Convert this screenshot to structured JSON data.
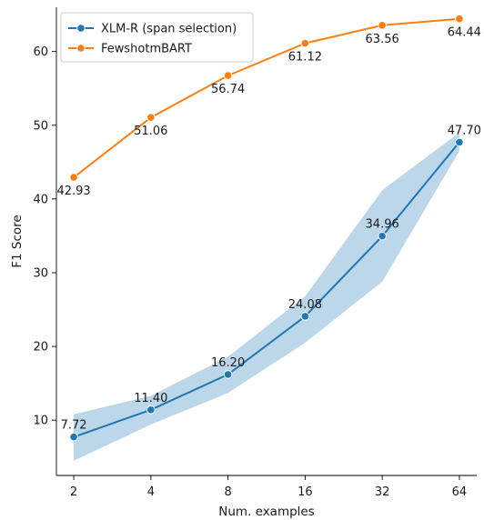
{
  "chart_data": {
    "type": "line",
    "x": [
      2,
      4,
      8,
      16,
      32,
      64
    ],
    "x_tick_labels": [
      "2",
      "4",
      "8",
      "16",
      "32",
      "64"
    ],
    "x_scale": "log2",
    "xlabel": "Num. examples",
    "ylabel": "F1 Score",
    "ylim": [
      2.5,
      66
    ],
    "y_ticks": [
      10,
      20,
      30,
      40,
      50,
      60
    ],
    "y_tick_labels": [
      "10",
      "20",
      "30",
      "40",
      "50",
      "60"
    ],
    "grid": false,
    "legend_position": "top-left",
    "series": [
      {
        "name": "XLM-R (span selection)",
        "color": "#1f77b4",
        "marker": "circle",
        "values": [
          7.72,
          11.4,
          16.2,
          24.08,
          34.96,
          47.7
        ],
        "value_labels": [
          "7.72",
          "11.40",
          "16.20",
          "24.08",
          "34.96",
          "47.70"
        ],
        "band_lower": [
          4.5,
          9.4,
          13.7,
          20.5,
          28.8,
          46.5
        ],
        "band_upper": [
          10.8,
          13.3,
          18.6,
          26.8,
          41.2,
          49.0
        ],
        "band_color": "#a6c8e3"
      },
      {
        "name": "FewshotmBART",
        "color": "#ff7f0e",
        "marker": "circle",
        "values": [
          42.93,
          51.06,
          56.74,
          61.12,
          63.56,
          64.44
        ],
        "value_labels": [
          "42.93",
          "51.06",
          "56.74",
          "61.12",
          "63.56",
          "64.44"
        ]
      }
    ]
  }
}
